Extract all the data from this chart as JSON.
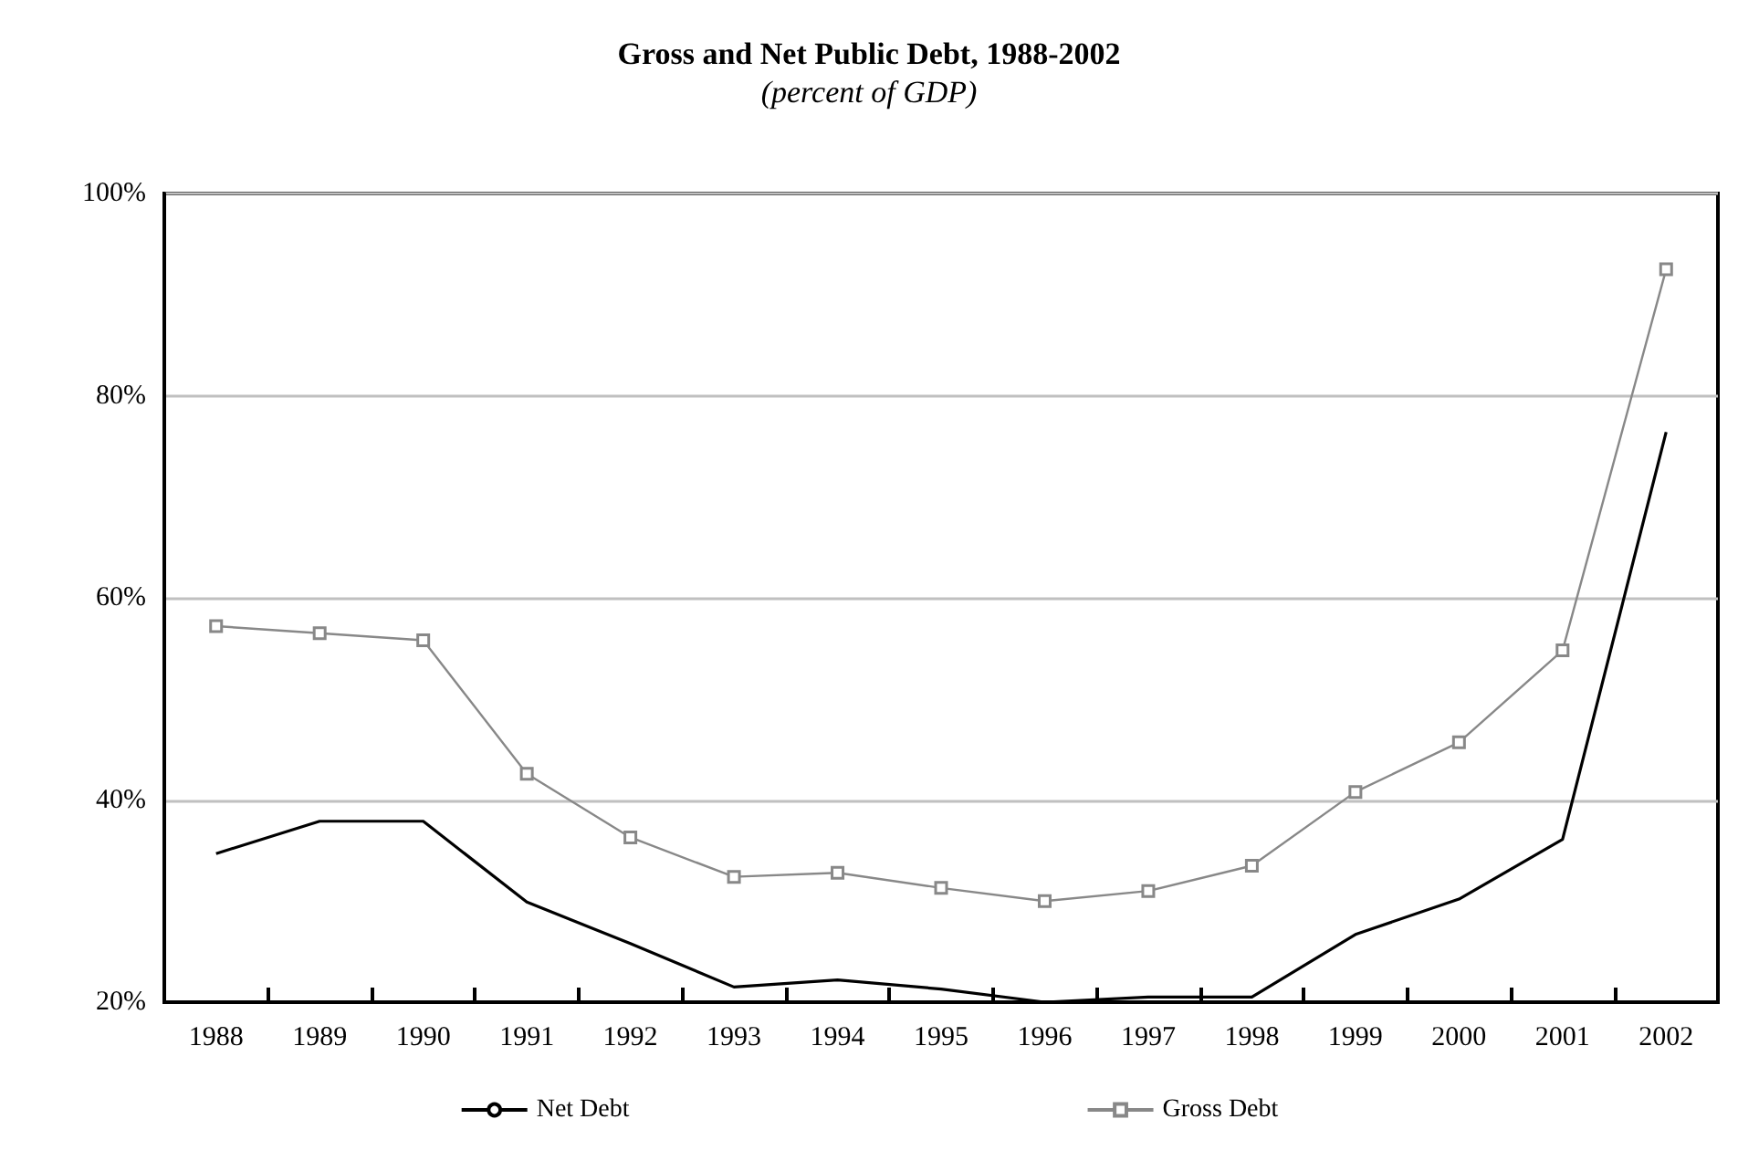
{
  "chart_data": {
    "type": "line",
    "title": "Gross and Net Public Debt, 1988-2002",
    "subtitle": "(percent of GDP)",
    "categories": [
      "1988",
      "1989",
      "1990",
      "1991",
      "1992",
      "1993",
      "1994",
      "1995",
      "1996",
      "1997",
      "1998",
      "1999",
      "2000",
      "2001",
      "2002"
    ],
    "series": [
      {
        "name": "Net Debt",
        "color": "#000000",
        "marker": "none",
        "values": [
          34.7,
          37.9,
          37.9,
          29.9,
          25.8,
          21.5,
          22.2,
          21.3,
          20,
          20.5,
          20.5,
          26.7,
          30.2,
          36.1,
          76.4
        ]
      },
      {
        "name": "Gross Debt",
        "color": "#888888",
        "marker": "square",
        "values": [
          57.2,
          56.5,
          55.8,
          42.6,
          36.3,
          32.4,
          32.8,
          31.3,
          30.0,
          31.0,
          33.5,
          40.8,
          45.7,
          54.8,
          92.5
        ]
      }
    ],
    "ylim": [
      20,
      100
    ],
    "yticks": [
      {
        "value": 20,
        "label": "20%"
      },
      {
        "value": 40,
        "label": "40%"
      },
      {
        "value": 60,
        "label": "60%"
      },
      {
        "value": 80,
        "label": "80%"
      },
      {
        "value": 100,
        "label": "100%"
      }
    ],
    "grid": "y",
    "legend": "bottom",
    "line_style": "solid"
  }
}
